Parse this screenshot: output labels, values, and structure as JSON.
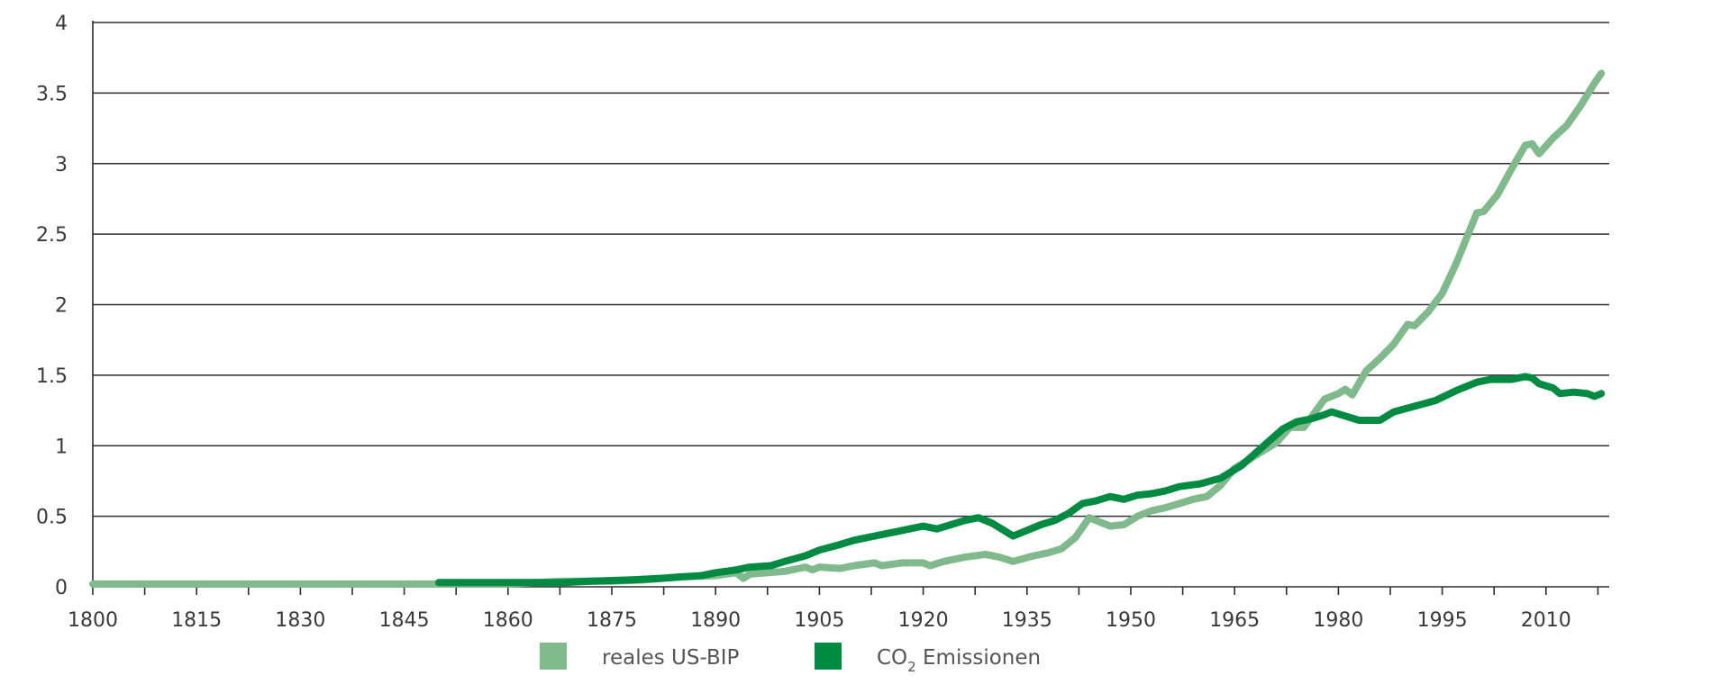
{
  "chart_data": {
    "type": "line",
    "title": "",
    "xlabel": "",
    "ylabel": "",
    "xlim": [
      1800,
      2019
    ],
    "ylim": [
      0,
      4
    ],
    "x_ticks": [
      1800,
      1815,
      1830,
      1845,
      1860,
      1875,
      1890,
      1905,
      1920,
      1935,
      1950,
      1965,
      1980,
      1995,
      2010
    ],
    "x_tick_labels": [
      "1800",
      "1815",
      "1830",
      "1845",
      "1860",
      "1875",
      "1890",
      "1905",
      "1920",
      "1935",
      "1950",
      "1965",
      "1980",
      "1995",
      "2010"
    ],
    "y_ticks": [
      0,
      0.5,
      1,
      1.5,
      2,
      2.5,
      3,
      3.5,
      4
    ],
    "y_tick_labels": [
      "0",
      "0.5",
      "1",
      "1.5",
      "2",
      "2.5",
      "3",
      "3.5",
      "4"
    ],
    "grid": "horizontal",
    "legend_position": "bottom-center",
    "series": [
      {
        "name": "reales US-BIP",
        "color": "#7fb98c",
        "points": [
          [
            1800,
            0.02
          ],
          [
            1820,
            0.02
          ],
          [
            1840,
            0.02
          ],
          [
            1860,
            0.02
          ],
          [
            1868,
            0.04
          ],
          [
            1875,
            0.04
          ],
          [
            1880,
            0.05
          ],
          [
            1885,
            0.07
          ],
          [
            1890,
            0.08
          ],
          [
            1893,
            0.1
          ],
          [
            1894,
            0.06
          ],
          [
            1895,
            0.09
          ],
          [
            1900,
            0.11
          ],
          [
            1903,
            0.14
          ],
          [
            1904,
            0.12
          ],
          [
            1905,
            0.14
          ],
          [
            1908,
            0.13
          ],
          [
            1910,
            0.15
          ],
          [
            1913,
            0.17
          ],
          [
            1914,
            0.15
          ],
          [
            1917,
            0.17
          ],
          [
            1920,
            0.17
          ],
          [
            1921,
            0.15
          ],
          [
            1923,
            0.18
          ],
          [
            1926,
            0.21
          ],
          [
            1929,
            0.23
          ],
          [
            1931,
            0.21
          ],
          [
            1933,
            0.18
          ],
          [
            1936,
            0.22
          ],
          [
            1938,
            0.24
          ],
          [
            1940,
            0.27
          ],
          [
            1942,
            0.35
          ],
          [
            1944,
            0.49
          ],
          [
            1946,
            0.45
          ],
          [
            1947,
            0.43
          ],
          [
            1949,
            0.44
          ],
          [
            1951,
            0.5
          ],
          [
            1953,
            0.54
          ],
          [
            1955,
            0.56
          ],
          [
            1957,
            0.59
          ],
          [
            1959,
            0.62
          ],
          [
            1961,
            0.64
          ],
          [
            1963,
            0.72
          ],
          [
            1965,
            0.84
          ],
          [
            1967,
            0.9
          ],
          [
            1969,
            0.96
          ],
          [
            1971,
            1.02
          ],
          [
            1973,
            1.13
          ],
          [
            1975,
            1.13
          ],
          [
            1978,
            1.33
          ],
          [
            1980,
            1.37
          ],
          [
            1981,
            1.4
          ],
          [
            1982,
            1.36
          ],
          [
            1984,
            1.53
          ],
          [
            1986,
            1.62
          ],
          [
            1988,
            1.72
          ],
          [
            1990,
            1.86
          ],
          [
            1991,
            1.85
          ],
          [
            1993,
            1.95
          ],
          [
            1995,
            2.08
          ],
          [
            1997,
            2.29
          ],
          [
            1999,
            2.53
          ],
          [
            2000,
            2.65
          ],
          [
            2001,
            2.66
          ],
          [
            2003,
            2.78
          ],
          [
            2005,
            2.96
          ],
          [
            2007,
            3.13
          ],
          [
            2008,
            3.14
          ],
          [
            2009,
            3.07
          ],
          [
            2011,
            3.18
          ],
          [
            2013,
            3.27
          ],
          [
            2015,
            3.41
          ],
          [
            2017,
            3.57
          ],
          [
            2018,
            3.64
          ]
        ]
      },
      {
        "name": "CO₂ Emissionen",
        "color": "#008a42",
        "points": [
          [
            1850,
            0.03
          ],
          [
            1860,
            0.03
          ],
          [
            1868,
            0.03
          ],
          [
            1872,
            0.04
          ],
          [
            1878,
            0.05
          ],
          [
            1882,
            0.06
          ],
          [
            1885,
            0.07
          ],
          [
            1888,
            0.08
          ],
          [
            1890,
            0.1
          ],
          [
            1893,
            0.12
          ],
          [
            1895,
            0.14
          ],
          [
            1898,
            0.15
          ],
          [
            1900,
            0.18
          ],
          [
            1903,
            0.22
          ],
          [
            1905,
            0.26
          ],
          [
            1908,
            0.3
          ],
          [
            1910,
            0.33
          ],
          [
            1913,
            0.36
          ],
          [
            1916,
            0.39
          ],
          [
            1918,
            0.41
          ],
          [
            1920,
            0.43
          ],
          [
            1922,
            0.41
          ],
          [
            1924,
            0.44
          ],
          [
            1926,
            0.47
          ],
          [
            1928,
            0.49
          ],
          [
            1930,
            0.45
          ],
          [
            1932,
            0.39
          ],
          [
            1933,
            0.36
          ],
          [
            1935,
            0.4
          ],
          [
            1937,
            0.44
          ],
          [
            1939,
            0.47
          ],
          [
            1941,
            0.52
          ],
          [
            1943,
            0.59
          ],
          [
            1945,
            0.61
          ],
          [
            1947,
            0.64
          ],
          [
            1949,
            0.62
          ],
          [
            1951,
            0.65
          ],
          [
            1953,
            0.66
          ],
          [
            1955,
            0.68
          ],
          [
            1957,
            0.71
          ],
          [
            1960,
            0.73
          ],
          [
            1963,
            0.77
          ],
          [
            1966,
            0.86
          ],
          [
            1969,
            0.99
          ],
          [
            1972,
            1.12
          ],
          [
            1974,
            1.17
          ],
          [
            1976,
            1.19
          ],
          [
            1978,
            1.22
          ],
          [
            1979,
            1.24
          ],
          [
            1981,
            1.21
          ],
          [
            1983,
            1.18
          ],
          [
            1986,
            1.18
          ],
          [
            1988,
            1.24
          ],
          [
            1991,
            1.28
          ],
          [
            1994,
            1.32
          ],
          [
            1997,
            1.39
          ],
          [
            2000,
            1.45
          ],
          [
            2002,
            1.47
          ],
          [
            2005,
            1.47
          ],
          [
            2007,
            1.49
          ],
          [
            2008,
            1.48
          ],
          [
            2009,
            1.44
          ],
          [
            2011,
            1.41
          ],
          [
            2012,
            1.37
          ],
          [
            2014,
            1.38
          ],
          [
            2016,
            1.37
          ],
          [
            2017,
            1.35
          ],
          [
            2018,
            1.37
          ]
        ]
      }
    ]
  },
  "legend": {
    "items": [
      {
        "label": "reales US-BIP",
        "color": "#7fb98c"
      },
      {
        "label_prefix": "CO",
        "label_sub": "2",
        "label_suffix": " Emissionen",
        "color": "#008a42"
      }
    ]
  }
}
